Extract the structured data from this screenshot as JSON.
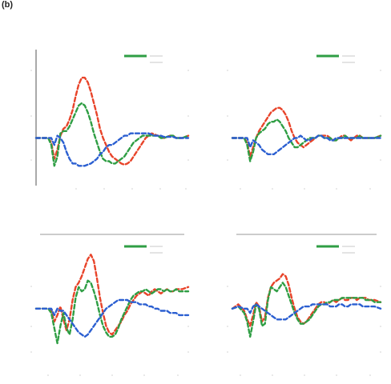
{
  "figure": {
    "panel_letter": "(b)"
  },
  "colors": {
    "red": "#e8442a",
    "green": "#2f9e44",
    "blue": "#2b5fd1",
    "axis": "#555555",
    "title_rule": "#bbbbbb"
  },
  "chart_data": [
    {
      "type": "line",
      "title": "",
      "title_rule": false,
      "ylabel": "",
      "xlabel": "",
      "left_axis": true,
      "legend": {
        "position": "top-right",
        "entries": []
      },
      "xlim": [
        0,
        100
      ],
      "ylim": [
        -2,
        4
      ],
      "x": [
        0,
        4,
        8,
        10,
        12,
        14,
        16,
        18,
        20,
        22,
        24,
        26,
        28,
        30,
        32,
        34,
        36,
        38,
        40,
        42,
        44,
        46,
        48,
        50,
        52,
        54,
        56,
        58,
        60,
        62,
        64,
        66,
        68,
        70,
        72,
        74,
        76,
        78,
        80,
        82,
        84,
        86,
        88,
        90,
        92,
        94,
        96,
        100
      ],
      "series": [
        {
          "color": "red",
          "values": [
            0,
            0,
            0,
            -0.2,
            -0.9,
            -0.5,
            0.1,
            0.4,
            0.5,
            0.8,
            1.2,
            1.8,
            2.3,
            2.6,
            2.6,
            2.4,
            2.0,
            1.5,
            1.0,
            0.4,
            0.0,
            -0.3,
            -0.6,
            -0.8,
            -0.9,
            -1.0,
            -1.1,
            -1.15,
            -1.1,
            -1.0,
            -0.8,
            -0.6,
            -0.4,
            -0.2,
            0,
            0.1,
            0.2,
            0.15,
            0.1,
            0.05,
            0,
            0.05,
            0.1,
            0.1,
            0.0,
            0.0,
            0.0,
            0.1
          ]
        },
        {
          "color": "green",
          "values": [
            0,
            0,
            0,
            -0.3,
            -1.2,
            -0.8,
            0.2,
            0.3,
            0.3,
            0.5,
            0.8,
            1.1,
            1.4,
            1.5,
            1.4,
            1.1,
            0.7,
            0.2,
            -0.2,
            -0.6,
            -0.9,
            -1.0,
            -1.0,
            -1.1,
            -1.1,
            -1.0,
            -0.9,
            -0.8,
            -0.6,
            -0.4,
            -0.2,
            -0.1,
            0,
            0.1,
            0.1,
            0.1,
            0.1,
            0.1,
            0.1,
            0,
            0,
            0.05,
            0.1,
            0.1,
            0.0,
            0.0,
            0.0,
            0.1
          ]
        },
        {
          "color": "blue",
          "values": [
            0,
            0,
            0,
            0,
            -0.3,
            0.1,
            0.0,
            -0.2,
            -0.6,
            -0.9,
            -1.1,
            -1.1,
            -1.2,
            -1.2,
            -1.2,
            -1.15,
            -1.1,
            -1.0,
            -0.9,
            -0.7,
            -0.6,
            -0.4,
            -0.3,
            -0.3,
            -0.2,
            -0.1,
            0,
            0.1,
            0.1,
            0.2,
            0.2,
            0.2,
            0.2,
            0.2,
            0.2,
            0.2,
            0.15,
            0.1,
            0.1,
            0.1,
            0.05,
            0.05,
            0.05,
            0.05,
            0.0,
            0.0,
            0.0,
            0.0
          ]
        }
      ]
    },
    {
      "type": "line",
      "title": "",
      "title_rule": false,
      "ylabel": "",
      "xlabel": "",
      "left_axis": false,
      "legend": {
        "position": "top-right",
        "entries": []
      },
      "xlim": [
        0,
        100
      ],
      "ylim": [
        -2,
        4
      ],
      "x": [
        0,
        4,
        8,
        10,
        12,
        14,
        16,
        18,
        20,
        22,
        24,
        26,
        28,
        30,
        32,
        34,
        36,
        38,
        40,
        42,
        44,
        46,
        48,
        50,
        52,
        54,
        56,
        58,
        60,
        62,
        64,
        66,
        68,
        70,
        72,
        74,
        76,
        78,
        80,
        82,
        84,
        86,
        88,
        90,
        92,
        94,
        96,
        100
      ],
      "series": [
        {
          "color": "red",
          "values": [
            0,
            0,
            0,
            -0.2,
            -0.8,
            -0.4,
            0.0,
            0.3,
            0.5,
            0.7,
            0.9,
            1.1,
            1.2,
            1.3,
            1.3,
            1.2,
            1.0,
            0.7,
            0.3,
            0.0,
            -0.2,
            -0.3,
            -0.4,
            -0.3,
            -0.2,
            -0.1,
            0.0,
            0.1,
            0.1,
            0.1,
            0.1,
            0.0,
            -0.1,
            -0.1,
            0.0,
            0.1,
            0.1,
            0.0,
            -0.1,
            0.0,
            0.1,
            0.1,
            0.0,
            0.0,
            0.0,
            0.0,
            0.0,
            0.1
          ]
        },
        {
          "color": "green",
          "values": [
            0,
            0,
            0,
            -0.3,
            -1.0,
            -0.6,
            0.0,
            0.2,
            0.3,
            0.4,
            0.6,
            0.7,
            0.7,
            0.8,
            0.7,
            0.5,
            0.3,
            0.0,
            -0.2,
            -0.4,
            -0.4,
            -0.3,
            -0.2,
            -0.1,
            0.0,
            0.0,
            0.0,
            0.1,
            0.1,
            0.0,
            0.0,
            0.0,
            -0.1,
            -0.1,
            0.0,
            0.0,
            0.1,
            0.0,
            0.0,
            0.0,
            0.0,
            0.1,
            0.0,
            0.0,
            0.0,
            0.0,
            0.0,
            0.1
          ]
        },
        {
          "color": "blue",
          "values": [
            0,
            0,
            0,
            0,
            -0.4,
            -0.1,
            -0.2,
            -0.3,
            -0.5,
            -0.6,
            -0.7,
            -0.7,
            -0.7,
            -0.6,
            -0.5,
            -0.4,
            -0.3,
            -0.2,
            -0.1,
            0.0,
            0.0,
            0.1,
            0.0,
            -0.1,
            -0.1,
            0.0,
            0.0,
            0.1,
            0.1,
            0.0,
            0.0,
            -0.1,
            -0.1,
            0.0,
            0.0,
            0.0,
            0.0,
            0.0,
            0.0,
            0.0,
            0.0,
            0.0,
            0.0,
            0.0,
            0.0,
            0.0,
            0.0,
            0.0
          ]
        }
      ]
    },
    {
      "type": "line",
      "title": "",
      "title_rule": true,
      "ylabel": "",
      "xlabel": "",
      "left_axis": false,
      "legend": {
        "position": "top-right",
        "entries": []
      },
      "xlim": [
        0,
        100
      ],
      "ylim": [
        -2,
        4
      ],
      "x": [
        0,
        4,
        8,
        10,
        12,
        14,
        16,
        18,
        20,
        22,
        24,
        26,
        28,
        30,
        32,
        34,
        36,
        38,
        40,
        42,
        44,
        46,
        48,
        50,
        52,
        54,
        56,
        58,
        60,
        62,
        64,
        66,
        68,
        70,
        72,
        74,
        76,
        78,
        80,
        82,
        84,
        86,
        88,
        90,
        92,
        94,
        96,
        100
      ],
      "series": [
        {
          "color": "red",
          "values": [
            0,
            0,
            0,
            -0.1,
            -0.6,
            -0.3,
            0.1,
            -0.5,
            -1.0,
            -0.5,
            0.4,
            1.0,
            1.2,
            1.5,
            1.9,
            2.3,
            2.5,
            2.2,
            1.4,
            0.5,
            -0.2,
            -0.8,
            -1.1,
            -1.2,
            -1.0,
            -0.8,
            -0.6,
            -0.3,
            -0.1,
            0.2,
            0.4,
            0.6,
            0.7,
            0.8,
            0.7,
            0.6,
            0.8,
            0.9,
            0.8,
            0.7,
            0.8,
            0.9,
            0.8,
            0.8,
            0.9,
            0.9,
            0.9,
            1.0
          ]
        },
        {
          "color": "green",
          "values": [
            0,
            0,
            0,
            -0.2,
            -0.9,
            -1.6,
            -0.8,
            -0.2,
            -0.9,
            -1.2,
            -0.5,
            0.5,
            1.0,
            0.8,
            0.9,
            1.3,
            1.2,
            0.8,
            0.3,
            -0.3,
            -0.8,
            -1.1,
            -1.3,
            -1.3,
            -1.2,
            -0.9,
            -0.5,
            -0.2,
            0.1,
            0.4,
            0.6,
            0.7,
            0.8,
            0.8,
            0.9,
            0.8,
            0.7,
            0.8,
            0.9,
            0.9,
            0.8,
            0.9,
            0.8,
            0.8,
            0.9,
            0.8,
            0.8,
            0.8
          ]
        },
        {
          "color": "blue",
          "values": [
            0,
            0,
            0,
            0,
            -0.3,
            0.0,
            -0.1,
            -0.1,
            -0.3,
            -0.5,
            -0.7,
            -0.9,
            -1.1,
            -1.2,
            -1.3,
            -1.2,
            -1.0,
            -0.8,
            -0.6,
            -0.4,
            -0.2,
            0.0,
            0.1,
            0.2,
            0.3,
            0.4,
            0.4,
            0.4,
            0.4,
            0.3,
            0.3,
            0.3,
            0.2,
            0.2,
            0.2,
            0.1,
            0.1,
            0.0,
            0.0,
            -0.1,
            -0.1,
            -0.1,
            -0.2,
            -0.2,
            -0.2,
            -0.3,
            -0.3,
            -0.3
          ]
        }
      ]
    },
    {
      "type": "line",
      "title": "",
      "title_rule": true,
      "ylabel": "",
      "xlabel": "",
      "left_axis": false,
      "legend": {
        "position": "top-right",
        "entries": []
      },
      "xlim": [
        0,
        100
      ],
      "ylim": [
        -2,
        4
      ],
      "x": [
        0,
        4,
        8,
        10,
        12,
        14,
        16,
        18,
        20,
        22,
        24,
        26,
        28,
        30,
        32,
        34,
        36,
        38,
        40,
        42,
        44,
        46,
        48,
        50,
        52,
        54,
        56,
        58,
        60,
        62,
        64,
        66,
        68,
        70,
        72,
        74,
        76,
        78,
        80,
        82,
        84,
        86,
        88,
        90,
        92,
        94,
        96,
        100
      ],
      "series": [
        {
          "color": "red",
          "values": [
            0,
            0.2,
            -0.1,
            -0.5,
            -0.8,
            -0.3,
            0.3,
            0.1,
            -0.6,
            -0.4,
            0.5,
            1.0,
            1.2,
            1.3,
            1.4,
            1.6,
            1.5,
            1.1,
            0.5,
            0.0,
            -0.4,
            -0.6,
            -0.7,
            -0.6,
            -0.4,
            -0.2,
            0.0,
            0.2,
            0.3,
            0.3,
            0.2,
            0.3,
            0.4,
            0.3,
            0.4,
            0.5,
            0.4,
            0.4,
            0.5,
            0.5,
            0.4,
            0.5,
            0.5,
            0.5,
            0.4,
            0.4,
            0.4,
            0.3
          ]
        },
        {
          "color": "green",
          "values": [
            0,
            0.1,
            -0.2,
            -0.6,
            -1.3,
            -0.6,
            0.2,
            0.0,
            -0.8,
            -0.7,
            0.4,
            1.0,
            0.9,
            0.8,
            1.0,
            1.2,
            1.0,
            0.6,
            0.2,
            -0.2,
            -0.5,
            -0.7,
            -0.7,
            -0.6,
            -0.5,
            -0.3,
            -0.1,
            0.1,
            0.2,
            0.2,
            0.3,
            0.3,
            0.4,
            0.4,
            0.4,
            0.5,
            0.5,
            0.5,
            0.5,
            0.5,
            0.5,
            0.5,
            0.5,
            0.4,
            0.4,
            0.4,
            0.3,
            0.3
          ]
        },
        {
          "color": "blue",
          "values": [
            0,
            0.1,
            0.0,
            0.0,
            -0.2,
            0.1,
            0.2,
            0.1,
            0.0,
            -0.1,
            -0.2,
            -0.3,
            -0.4,
            -0.5,
            -0.5,
            -0.5,
            -0.5,
            -0.4,
            -0.3,
            -0.2,
            -0.1,
            0.0,
            0.1,
            0.1,
            0.1,
            0.2,
            0.2,
            0.2,
            0.2,
            0.2,
            0.2,
            0.1,
            0.1,
            0.1,
            0.2,
            0.2,
            0.1,
            0.1,
            0.2,
            0.2,
            0.2,
            0.2,
            0.1,
            0.1,
            0.1,
            0.1,
            0.1,
            0.0
          ]
        }
      ]
    }
  ]
}
